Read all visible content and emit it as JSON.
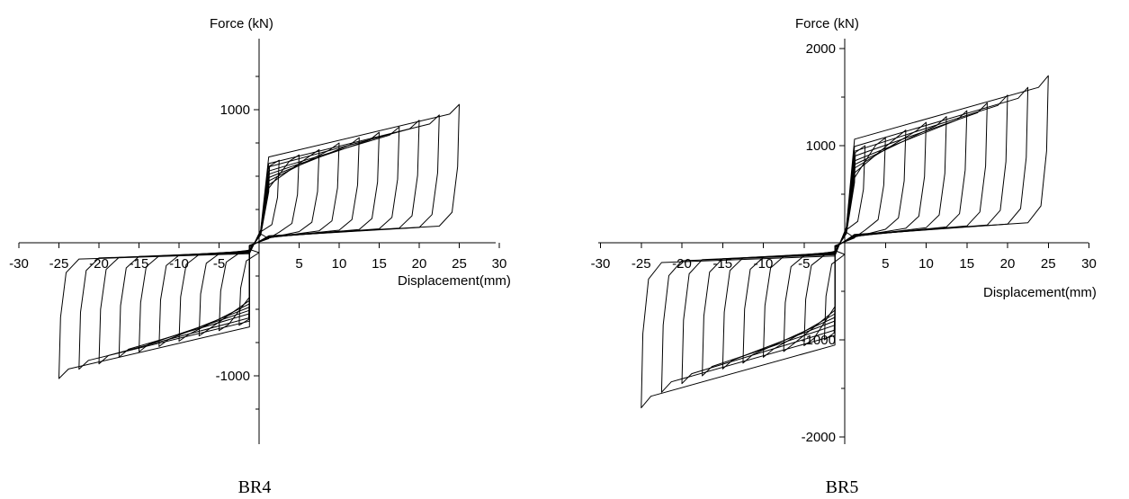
{
  "chart_data": [
    {
      "type": "line",
      "caption": "BR4",
      "xlabel": "Displacement(mm)",
      "ylabel": "Force (kN)",
      "xlim": [
        -30,
        30
      ],
      "ylim": [
        -1300,
        1300
      ],
      "x_ticks": [
        -30,
        -25,
        -20,
        -15,
        -10,
        -5,
        5,
        10,
        15,
        20,
        25,
        30
      ],
      "y_ticks": [
        1000,
        -1000
      ],
      "grid": false,
      "legend": "none",
      "series": [
        {
          "amplitude": 2.5,
          "peak_pos": 620,
          "peak_neg": -620
        },
        {
          "amplitude": 5,
          "peak_pos": 660,
          "peak_neg": -660
        },
        {
          "amplitude": 7.5,
          "peak_pos": 700,
          "peak_neg": -700
        },
        {
          "amplitude": 10,
          "peak_pos": 750,
          "peak_neg": -740
        },
        {
          "amplitude": 12.5,
          "peak_pos": 790,
          "peak_neg": -780
        },
        {
          "amplitude": 15,
          "peak_pos": 830,
          "peak_neg": -820
        },
        {
          "amplitude": 17.5,
          "peak_pos": 870,
          "peak_neg": -860
        },
        {
          "amplitude": 20,
          "peak_pos": 920,
          "peak_neg": -910
        },
        {
          "amplitude": 22.5,
          "peak_pos": 960,
          "peak_neg": -950
        },
        {
          "amplitude": 25,
          "peak_pos": 1040,
          "peak_neg": -1020
        }
      ]
    },
    {
      "type": "line",
      "caption": "BR5",
      "xlabel": "Displacement(mm)",
      "ylabel": "Force (kN)",
      "xlim": [
        -30,
        30
      ],
      "ylim": [
        -2150,
        2150
      ],
      "x_ticks": [
        -30,
        -25,
        -20,
        -15,
        -10,
        -5,
        5,
        10,
        15,
        20,
        25,
        30
      ],
      "y_ticks": [
        2000,
        1000,
        -1000,
        -2000
      ],
      "grid": false,
      "legend": "none",
      "series": [
        {
          "amplitude": 2.5,
          "peak_pos": 1000,
          "peak_neg": -1000
        },
        {
          "amplitude": 5,
          "peak_pos": 1080,
          "peak_neg": -1060
        },
        {
          "amplitude": 7.5,
          "peak_pos": 1160,
          "peak_neg": -1120
        },
        {
          "amplitude": 10,
          "peak_pos": 1240,
          "peak_neg": -1180
        },
        {
          "amplitude": 12.5,
          "peak_pos": 1300,
          "peak_neg": -1240
        },
        {
          "amplitude": 15,
          "peak_pos": 1360,
          "peak_neg": -1300
        },
        {
          "amplitude": 17.5,
          "peak_pos": 1440,
          "peak_neg": -1370
        },
        {
          "amplitude": 20,
          "peak_pos": 1520,
          "peak_neg": -1450
        },
        {
          "amplitude": 22.5,
          "peak_pos": 1600,
          "peak_neg": -1540
        },
        {
          "amplitude": 25,
          "peak_pos": 1720,
          "peak_neg": -1700
        }
      ]
    }
  ]
}
